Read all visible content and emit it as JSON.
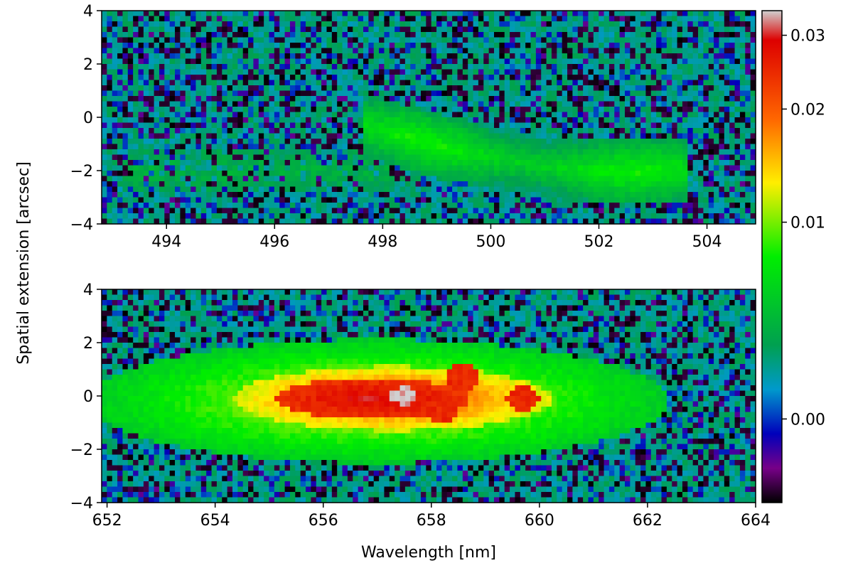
{
  "chart_data": [
    {
      "type": "heatmap",
      "panel": "top",
      "title": "",
      "xlabel": "",
      "ylabel": "",
      "xlim": [
        492.8,
        504.9
      ],
      "ylim": [
        -4,
        4
      ],
      "xticks": [
        "494",
        "496",
        "498",
        "500",
        "502",
        "504"
      ],
      "yticks": [
        "4",
        "2",
        "0",
        "−2",
        "−4"
      ],
      "features": [
        {
          "description": "faint curved arc emission",
          "x_range": [
            497.8,
            503.4
          ],
          "y_center_at_start": -0.5,
          "y_center_at_end": -1.9
        },
        {
          "description": "faint diffuse band",
          "x_range": [
            493.2,
            497.8
          ],
          "y_center": -2.0
        }
      ]
    },
    {
      "type": "heatmap",
      "panel": "bottom",
      "title": "",
      "xlabel": "Wavelength [nm]",
      "ylabel": "",
      "xlim": [
        651.9,
        664.0
      ],
      "ylim": [
        -4,
        4
      ],
      "xticks": [
        "652",
        "654",
        "656",
        "658",
        "660",
        "662",
        "664"
      ],
      "yticks": [
        "4",
        "2",
        "0",
        "−2",
        "−4"
      ],
      "features": [
        {
          "description": "bright elongated emission blob",
          "x_range": [
            653.6,
            660.6
          ],
          "y_center": -0.2,
          "peak_x": 657.5,
          "peak_y": 0.0
        }
      ]
    }
  ],
  "shared": {
    "ylabel": "Spatial extension [arcsec]"
  },
  "colorbar": {
    "cmap": "nipy_spectral",
    "scale": "nonlinear",
    "ticks": [
      "0.03",
      "0.02",
      "0.01",
      "0.00"
    ],
    "tick_fraction_from_top": [
      0.05,
      0.2,
      0.43,
      0.83
    ],
    "stops": [
      {
        "f": 0.0,
        "color": "#d0d0d0"
      },
      {
        "f": 0.06,
        "color": "#dd0000"
      },
      {
        "f": 0.22,
        "color": "#ff6600"
      },
      {
        "f": 0.35,
        "color": "#ffee00"
      },
      {
        "f": 0.5,
        "color": "#00ee00"
      },
      {
        "f": 0.68,
        "color": "#00a050"
      },
      {
        "f": 0.77,
        "color": "#0099cc"
      },
      {
        "f": 0.86,
        "color": "#0000bb"
      },
      {
        "f": 0.93,
        "color": "#770088"
      },
      {
        "f": 1.0,
        "color": "#000000"
      }
    ]
  }
}
